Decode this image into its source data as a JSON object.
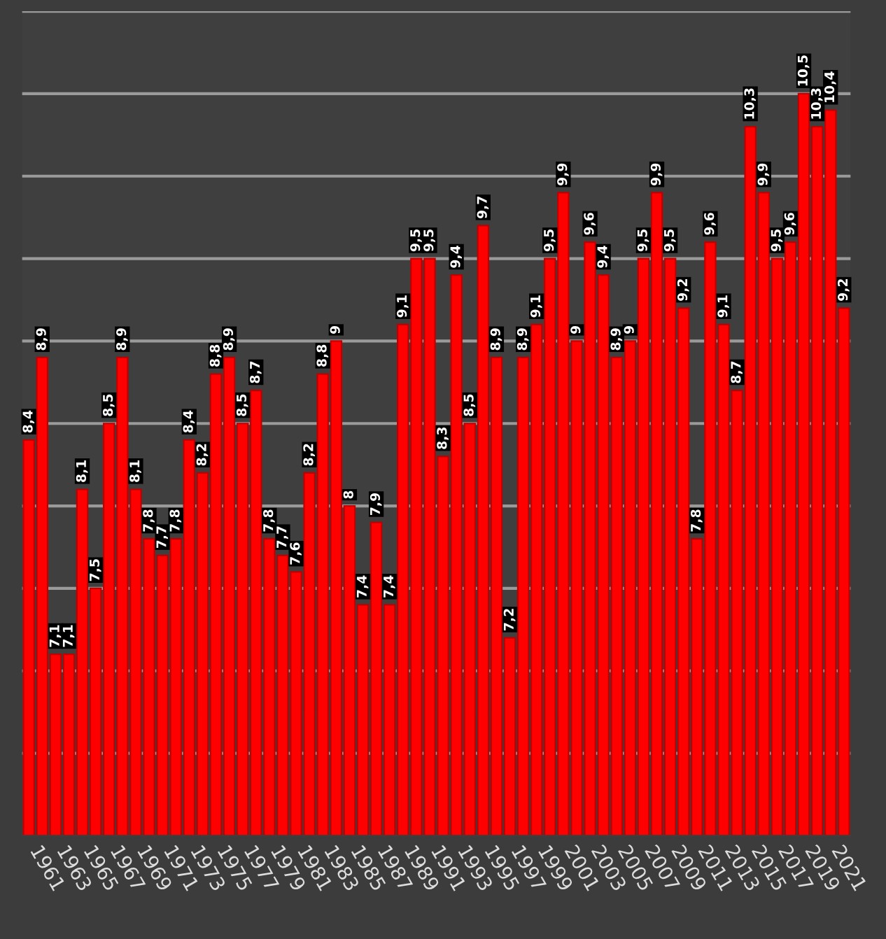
{
  "chart_data": {
    "type": "bar",
    "categories": [
      null,
      "1961",
      null,
      "1963",
      null,
      "1965",
      null,
      "1967",
      null,
      "1969",
      null,
      "1971",
      null,
      "1973",
      null,
      "1975",
      null,
      "1977",
      null,
      "1979",
      null,
      "1981",
      null,
      "1983",
      null,
      "1985",
      null,
      "1987",
      null,
      "1989",
      null,
      "1991",
      null,
      "1993",
      null,
      "1995",
      null,
      "1997",
      null,
      "1999",
      null,
      "2001",
      null,
      "2003",
      null,
      "2005",
      null,
      "2007",
      null,
      "2009",
      null,
      "2011",
      null,
      "2013",
      null,
      "2015",
      null,
      "2017",
      null,
      "2019",
      null,
      "2021"
    ],
    "values": [
      8.4,
      8.9,
      7.1,
      7.1,
      8.1,
      7.5,
      8.5,
      8.9,
      8.1,
      7.8,
      7.7,
      7.8,
      8.4,
      8.2,
      8.8,
      8.9,
      8.5,
      8.7,
      7.8,
      7.7,
      7.6,
      8.2,
      8.8,
      9,
      8,
      7.4,
      7.9,
      7.4,
      9.1,
      9.5,
      9.5,
      8.3,
      9.4,
      8.5,
      9.7,
      8.9,
      7.2,
      8.9,
      9.1,
      9.5,
      9.9,
      9,
      9.6,
      9.4,
      8.9,
      9,
      9.5,
      9.9,
      9.5,
      9.2,
      7.8,
      9.6,
      9.1,
      8.7,
      10.3,
      9.9,
      9.5,
      9.6,
      10.5,
      10.3,
      10.4,
      9.2
    ],
    "color": "#ff0000",
    "ylim": [
      6,
      11
    ],
    "yticks": [
      {
        "value": 6.5,
        "label": null
      },
      {
        "value": 7,
        "label": null
      },
      {
        "value": 7.5,
        "label": null
      },
      {
        "value": 8,
        "label": null
      },
      {
        "value": 8.5,
        "label": null
      },
      {
        "value": 9,
        "label": null
      },
      {
        "value": 9.5,
        "label": null
      },
      {
        "value": 10,
        "label": null
      },
      {
        "value": 10.5,
        "label": null
      },
      {
        "value": 11,
        "label": null
      }
    ],
    "grid": "y",
    "tick_labels": "x",
    "value_labels": [
      "8,4",
      "8,9",
      "7,1",
      "7,1",
      "8,1",
      "7,5",
      "8,5",
      "8,9",
      "8,1",
      "7,8",
      "7,7",
      "7,8",
      "8,4",
      "8,2",
      "8,8",
      "8,9",
      "8,5",
      "8,7",
      "7,8",
      "7,7",
      "7,6",
      "8,2",
      "8,8",
      "9",
      "8",
      "7,4",
      "7,9",
      "7,4",
      "9,1",
      "9,5",
      "9,5",
      "8,3",
      "9,4",
      "8,5",
      "9,7",
      "8,9",
      "7,2",
      "8,9",
      "9,1",
      "9,5",
      "9,9",
      "9",
      "9,6",
      "9,4",
      "8,9",
      "9",
      "9,5",
      "9,9",
      "9,5",
      "9,2",
      "7,8",
      "9,6",
      "9,1",
      "8,7",
      "10,3",
      "9,9",
      "9,5",
      "9,6",
      "10,5",
      "10,3",
      "10,4",
      "9,2"
    ]
  }
}
